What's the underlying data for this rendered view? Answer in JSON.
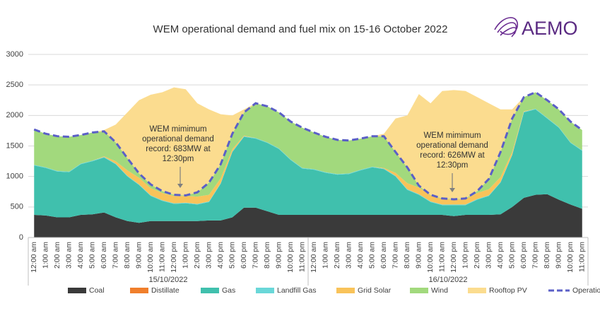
{
  "chart_data": {
    "type": "area",
    "title": "WEM operational demand and fuel mix on 15-16 October 2022",
    "logo_text": "AEMO",
    "categories": [
      "12:00 am",
      "1:00 am",
      "2:00 am",
      "3:00 am",
      "4:00 am",
      "5:00 am",
      "6:00 am",
      "7:00 am",
      "8:00 am",
      "9:00 am",
      "10:00 am",
      "11:00 am",
      "12:00 pm",
      "1:00 pm",
      "2:00 pm",
      "3:00 pm",
      "4:00 pm",
      "5:00 pm",
      "6:00 pm",
      "7:00 pm",
      "8:00 pm",
      "9:00 pm",
      "10:00 pm",
      "11:00 pm",
      "12:00 am",
      "1:00 am",
      "2:00 am",
      "3:00 am",
      "4:00 am",
      "5:00 am",
      "6:00 am",
      "7:00 am",
      "8:00 am",
      "9:00 am",
      "10:00 am",
      "11:00 am",
      "12:00 pm",
      "1:00 pm",
      "2:00 pm",
      "3:00 pm",
      "4:00 pm",
      "5:00 pm",
      "6:00 pm",
      "7:00 pm",
      "8:00 pm",
      "9:00 pm",
      "10:00 pm",
      "11:00 pm"
    ],
    "x_groups": [
      "15/10/2022",
      "16/10/2022"
    ],
    "ylim": [
      0,
      3000
    ],
    "yticks": [
      0,
      500,
      1000,
      1500,
      2000,
      2500,
      3000
    ],
    "grid": true,
    "series": [
      {
        "name": "Coal",
        "color": "#3a3a3a",
        "values": [
          370,
          360,
          330,
          330,
          370,
          380,
          410,
          330,
          270,
          240,
          270,
          270,
          270,
          270,
          270,
          280,
          280,
          330,
          490,
          490,
          430,
          370,
          370,
          370,
          370,
          370,
          370,
          370,
          370,
          370,
          370,
          370,
          370,
          370,
          370,
          370,
          350,
          370,
          370,
          370,
          380,
          500,
          650,
          700,
          710,
          620,
          540,
          470
        ]
      },
      {
        "name": "Distillate",
        "color": "#f07f2c",
        "values": [
          0,
          0,
          0,
          0,
          0,
          0,
          0,
          0,
          0,
          0,
          0,
          0,
          0,
          0,
          0,
          0,
          0,
          0,
          0,
          0,
          0,
          0,
          0,
          0,
          0,
          0,
          0,
          0,
          0,
          0,
          0,
          0,
          0,
          0,
          0,
          0,
          0,
          0,
          0,
          0,
          0,
          0,
          0,
          0,
          0,
          0,
          0,
          0
        ]
      },
      {
        "name": "Gas",
        "color": "#40c0ad",
        "values": [
          810,
          780,
          750,
          740,
          830,
          870,
          900,
          870,
          730,
          620,
          410,
          330,
          280,
          290,
          270,
          300,
          600,
          1070,
          1160,
          1130,
          1120,
          1080,
          900,
          760,
          740,
          690,
          660,
          670,
          730,
          780,
          750,
          630,
          410,
          330,
          210,
          160,
          180,
          160,
          250,
          310,
          520,
          850,
          1400,
          1400,
          1240,
          1180,
          1010,
          950
        ]
      },
      {
        "name": "Landfill Gas",
        "color": "#6ad7d8",
        "values": [
          10,
          10,
          10,
          10,
          10,
          10,
          10,
          10,
          10,
          10,
          10,
          10,
          10,
          10,
          10,
          10,
          10,
          10,
          10,
          10,
          10,
          10,
          10,
          10,
          10,
          10,
          10,
          10,
          10,
          10,
          10,
          10,
          10,
          10,
          10,
          10,
          10,
          10,
          10,
          10,
          10,
          10,
          10,
          10,
          10,
          10,
          10,
          10
        ]
      },
      {
        "name": "Grid Solar",
        "color": "#f9c35a",
        "values": [
          0,
          0,
          0,
          0,
          0,
          0,
          10,
          40,
          90,
          110,
          120,
          120,
          120,
          110,
          120,
          110,
          80,
          40,
          10,
          0,
          0,
          0,
          0,
          0,
          0,
          0,
          0,
          0,
          0,
          0,
          10,
          50,
          100,
          110,
          100,
          90,
          80,
          90,
          100,
          100,
          80,
          40,
          10,
          0,
          0,
          0,
          0,
          0
        ]
      },
      {
        "name": "Wind",
        "color": "#a2d97d",
        "values": [
          580,
          550,
          570,
          570,
          470,
          460,
          410,
          310,
          200,
          70,
          60,
          30,
          20,
          10,
          70,
          200,
          230,
          250,
          380,
          570,
          590,
          590,
          620,
          660,
          600,
          580,
          560,
          540,
          510,
          500,
          520,
          340,
          260,
          30,
          10,
          10,
          6,
          10,
          30,
          170,
          410,
          550,
          230,
          270,
          290,
          290,
          340,
          330
        ]
      },
      {
        "name": "Rooftop PV",
        "color": "#fbdc8f",
        "values": [
          0,
          0,
          0,
          0,
          0,
          0,
          20,
          290,
          750,
          1200,
          1470,
          1620,
          1760,
          1740,
          1460,
          1200,
          820,
          300,
          50,
          0,
          0,
          0,
          0,
          0,
          0,
          0,
          0,
          0,
          0,
          0,
          40,
          550,
          850,
          1500,
          1500,
          1760,
          1790,
          1760,
          1540,
          1240,
          700,
          150,
          0,
          0,
          0,
          0,
          0,
          0
        ]
      },
      {
        "name": "Operational Demand",
        "color": "#5b5fc7",
        "type": "line",
        "values": [
          1770,
          1700,
          1660,
          1650,
          1680,
          1720,
          1740,
          1560,
          1300,
          1050,
          870,
          760,
          700,
          690,
          740,
          900,
          1200,
          1700,
          2050,
          2200,
          2150,
          2050,
          1900,
          1800,
          1720,
          1650,
          1600,
          1590,
          1620,
          1660,
          1660,
          1400,
          1150,
          850,
          700,
          640,
          626,
          640,
          760,
          960,
          1400,
          1950,
          2300,
          2380,
          2250,
          2100,
          1900,
          1760
        ]
      }
    ],
    "annotations": [
      {
        "lines": [
          "WEM mimimum",
          "operational demand",
          "record: 683MW at",
          "12:30pm"
        ]
      },
      {
        "lines": [
          "WEM mimimum",
          "operational demand",
          "record: 626MW at",
          "12:30pm"
        ]
      }
    ]
  }
}
